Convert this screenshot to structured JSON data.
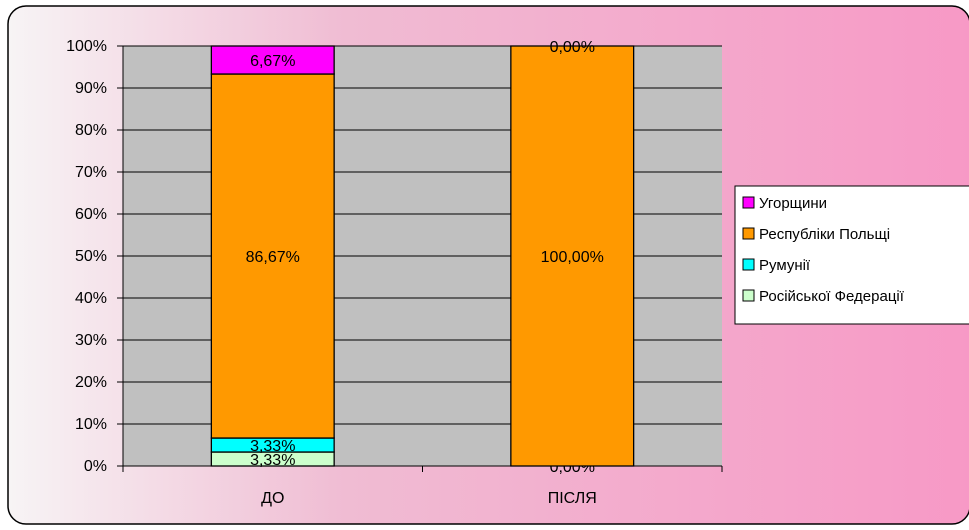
{
  "chart_data": {
    "type": "bar",
    "stacked": true,
    "percent_stacked": true,
    "categories": [
      "ДО",
      "ПІСЛЯ"
    ],
    "series": [
      {
        "name": "Російської Федерації",
        "values": [
          3.33,
          0
        ],
        "labels": [
          "3,33%",
          ""
        ]
      },
      {
        "name": "Румунії",
        "values": [
          3.33,
          0
        ],
        "labels": [
          "3,33%",
          "0,00%"
        ]
      },
      {
        "name": "Республіки Польщі",
        "values": [
          86.67,
          100
        ],
        "labels": [
          "86,67%",
          "100,00%"
        ]
      },
      {
        "name": "Угорщини",
        "values": [
          6.67,
          0
        ],
        "labels": [
          "6,67%",
          "0,00%"
        ]
      }
    ],
    "ylim": [
      0,
      100
    ],
    "y_ticks": [
      "0%",
      "10%",
      "20%",
      "30%",
      "40%",
      "50%",
      "60%",
      "70%",
      "80%",
      "90%",
      "100%"
    ],
    "legend": [
      "Угорщини",
      "Республіки Польщі",
      "Румунії",
      "Російської Федерації"
    ],
    "legend_position": "right",
    "grid": true,
    "colors": {
      "Угорщини": "#ff00ff",
      "Республіки Польщі": "#ff9900",
      "Румунії": "#00ffff",
      "Російської Федерації": "#ccffcc",
      "plot_area": "#c0c0c0",
      "background_start": "#f7f3f5",
      "background_end": "#f79ac6"
    }
  }
}
